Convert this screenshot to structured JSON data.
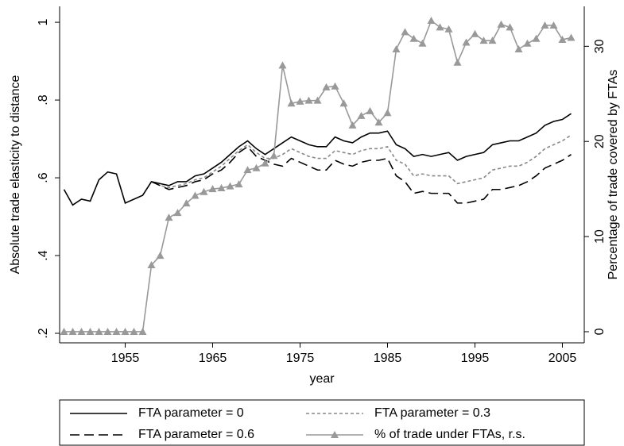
{
  "chart_data": {
    "type": "line",
    "x_label": "year",
    "y_label": "Absolute trade elasticity to distance",
    "y2_label": "Percentage of trade covered by FTAs",
    "x": [
      1948,
      1949,
      1950,
      1951,
      1952,
      1953,
      1954,
      1955,
      1956,
      1957,
      1958,
      1959,
      1960,
      1961,
      1962,
      1963,
      1964,
      1965,
      1966,
      1967,
      1968,
      1969,
      1970,
      1971,
      1972,
      1973,
      1974,
      1975,
      1976,
      1977,
      1978,
      1979,
      1980,
      1981,
      1982,
      1983,
      1984,
      1985,
      1986,
      1987,
      1988,
      1989,
      1990,
      1991,
      1992,
      1993,
      1994,
      1995,
      1996,
      1997,
      1998,
      1999,
      2000,
      2001,
      2002,
      2003,
      2004,
      2005,
      2006
    ],
    "xlim": [
      1947.5,
      2007.5
    ],
    "xticks": [
      1955,
      1965,
      1975,
      1985,
      1995,
      2005
    ],
    "ylim": [
      0.1755,
      1.041
    ],
    "yticks": [
      {
        "value": 0.2,
        "label": ".2"
      },
      {
        "value": 0.4,
        "label": ".4"
      },
      {
        "value": 0.6,
        "label": ".6"
      },
      {
        "value": 0.8,
        "label": ".8"
      },
      1
    ],
    "y2lim": [
      -1.17,
      34.2
    ],
    "y2ticks": [
      0,
      10,
      20,
      30
    ],
    "series": [
      {
        "name": "FTA parameter = 0",
        "color": "#000000",
        "style": "solid",
        "values": [
          0.57,
          0.53,
          0.545,
          0.54,
          0.595,
          0.615,
          0.61,
          0.535,
          0.545,
          0.555,
          0.59,
          0.585,
          0.58,
          0.59,
          0.59,
          0.605,
          0.61,
          0.625,
          0.64,
          0.66,
          0.68,
          0.695,
          0.675,
          0.66,
          0.675,
          0.69,
          0.705,
          0.695,
          0.685,
          0.68,
          0.68,
          0.705,
          0.695,
          0.69,
          0.705,
          0.715,
          0.715,
          0.72,
          0.685,
          0.675,
          0.655,
          0.66,
          0.655,
          0.66,
          0.665,
          0.645,
          0.655,
          0.66,
          0.665,
          0.685,
          0.69,
          0.695,
          0.695,
          0.705,
          0.715,
          0.735,
          0.745,
          0.75,
          0.765
        ]
      },
      {
        "name": "FTA parameter = 0.3",
        "color": "#888888",
        "style": "dotted",
        "values": [
          null,
          null,
          null,
          null,
          null,
          null,
          null,
          null,
          null,
          null,
          0.59,
          0.58,
          0.575,
          0.58,
          0.585,
          0.595,
          0.6,
          0.615,
          0.63,
          0.65,
          0.67,
          0.685,
          0.665,
          0.65,
          0.65,
          0.66,
          0.675,
          0.665,
          0.655,
          0.65,
          0.65,
          0.67,
          0.665,
          0.66,
          0.67,
          0.675,
          0.675,
          0.68,
          0.645,
          0.635,
          0.605,
          0.61,
          0.605,
          0.605,
          0.605,
          0.585,
          0.59,
          0.595,
          0.6,
          0.62,
          0.625,
          0.63,
          0.63,
          0.64,
          0.655,
          0.675,
          0.685,
          0.695,
          0.71
        ]
      },
      {
        "name": "FTA parameter = 0.6",
        "color": "#000000",
        "style": "dashed",
        "values": [
          null,
          null,
          null,
          null,
          null,
          null,
          null,
          null,
          null,
          null,
          0.59,
          0.58,
          0.57,
          0.575,
          0.58,
          0.59,
          0.595,
          0.61,
          0.62,
          0.64,
          0.665,
          0.68,
          0.655,
          0.645,
          0.635,
          0.63,
          0.65,
          0.64,
          0.63,
          0.62,
          0.62,
          0.645,
          0.635,
          0.63,
          0.64,
          0.645,
          0.645,
          0.65,
          0.605,
          0.59,
          0.56,
          0.565,
          0.56,
          0.56,
          0.56,
          0.535,
          0.535,
          0.54,
          0.545,
          0.57,
          0.57,
          0.575,
          0.58,
          0.59,
          0.605,
          0.625,
          0.635,
          0.645,
          0.66
        ]
      },
      {
        "name": "% of trade under FTAs, r.s.",
        "color": "#999999",
        "style": "solid",
        "marker": "triangle",
        "axis": "y2",
        "values": [
          0,
          0,
          0,
          0,
          0,
          0,
          0,
          0,
          0,
          0,
          7,
          8,
          12,
          12.5,
          13.5,
          14.3,
          14.7,
          15,
          15.1,
          15.3,
          15.5,
          17,
          17.2,
          17.7,
          18.5,
          28,
          24,
          24.2,
          24.3,
          24.3,
          25.7,
          25.8,
          24,
          21.7,
          22.7,
          23.2,
          22,
          23,
          29.7,
          31.5,
          30.8,
          30.3,
          32.7,
          32,
          31.8,
          28.3,
          30.4,
          31.3,
          30.6,
          30.6,
          32.3,
          32,
          29.7,
          30.3,
          30.8,
          32.2,
          32.2,
          30.7,
          30.9
        ]
      }
    ]
  }
}
